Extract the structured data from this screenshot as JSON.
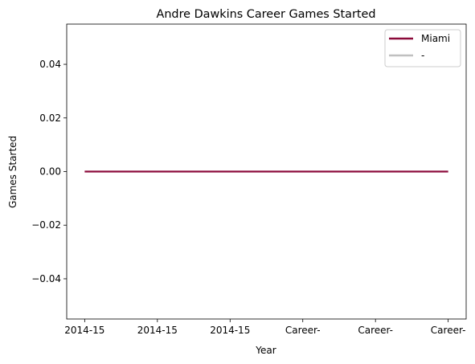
{
  "chart_data": {
    "type": "line",
    "title": "Andre Dawkins Career Games Started",
    "xlabel": "Year",
    "ylabel": "Games Started",
    "categories": [
      "2014-15",
      "2014-15",
      "2014-15",
      "Career-",
      "Career-",
      "Career-"
    ],
    "series": [
      {
        "name": "Miami",
        "color": "#8b0a3a",
        "values": [
          0,
          0,
          0,
          0,
          0,
          0
        ]
      }
    ],
    "legend_entries": [
      {
        "label": "Miami",
        "color": "#8b0a3a"
      },
      {
        "label": "-",
        "color": "#c0c0c0"
      }
    ],
    "ylim": [
      -0.055,
      0.055
    ],
    "yticks": [
      -0.04,
      -0.02,
      0.0,
      0.02,
      0.04
    ],
    "ytick_labels": [
      "−0.04",
      "−0.02",
      "0.00",
      "0.02",
      "0.04"
    ],
    "grid": false,
    "legend_position": "top-right"
  }
}
